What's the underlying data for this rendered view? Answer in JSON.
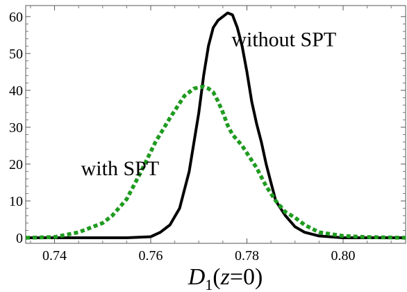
{
  "chart_data": {
    "type": "line",
    "xlabel": {
      "main": "D",
      "sub": "1",
      "paren_open": "(",
      "var": "z",
      "rest": "=0)"
    },
    "ylabel": "",
    "xlim": [
      0.734,
      0.813
    ],
    "ylim": [
      -1.5,
      63
    ],
    "grid": false,
    "x_ticks": [
      0.74,
      0.76,
      0.78,
      0.8
    ],
    "x_tick_labels": [
      "0.74",
      "0.76",
      "0.78",
      "0.80"
    ],
    "y_ticks": [
      0,
      10,
      20,
      30,
      40,
      50,
      60
    ],
    "y_tick_labels": [
      "0",
      "10",
      "20",
      "30",
      "40",
      "50",
      "60"
    ],
    "annotations": [
      {
        "text": "without SPT",
        "x": 0.7768,
        "y": 52
      },
      {
        "text": "with SPT",
        "x": 0.7455,
        "y": 17
      }
    ],
    "series": [
      {
        "color": "#000000",
        "style": "solid",
        "x": [
          0.734,
          0.745,
          0.755,
          0.76,
          0.762,
          0.764,
          0.766,
          0.768,
          0.77,
          0.771,
          0.772,
          0.773,
          0.774,
          0.775,
          0.776,
          0.777,
          0.778,
          0.779,
          0.78,
          0.781,
          0.782,
          0.783,
          0.784,
          0.785,
          0.786,
          0.788,
          0.79,
          0.792,
          0.795,
          0.8,
          0.805,
          0.813
        ],
        "y": [
          0,
          0,
          0,
          0.3,
          1.5,
          3.5,
          8,
          18,
          34,
          44,
          52,
          57,
          59,
          60,
          61,
          60.5,
          57,
          52,
          45,
          37,
          31,
          26,
          20,
          15,
          10,
          6,
          3,
          1.5,
          0.5,
          0,
          0,
          0
        ]
      },
      {
        "color": "#1f9b1f",
        "style": "dotted",
        "x": [
          0.734,
          0.74,
          0.745,
          0.75,
          0.752,
          0.755,
          0.758,
          0.761,
          0.764,
          0.767,
          0.769,
          0.771,
          0.772,
          0.773,
          0.774,
          0.775,
          0.776,
          0.777,
          0.778,
          0.779,
          0.78,
          0.782,
          0.784,
          0.786,
          0.788,
          0.79,
          0.792,
          0.795,
          0.8,
          0.805,
          0.813
        ],
        "y": [
          0,
          0.2,
          1.5,
          4,
          6,
          10.5,
          18,
          26,
          32.5,
          38.5,
          40.5,
          41,
          40.5,
          39.5,
          37,
          34,
          30.5,
          28,
          26.5,
          25,
          23,
          19,
          14,
          10,
          7,
          5.5,
          3.5,
          1.5,
          0.5,
          0.2,
          0
        ]
      }
    ]
  }
}
